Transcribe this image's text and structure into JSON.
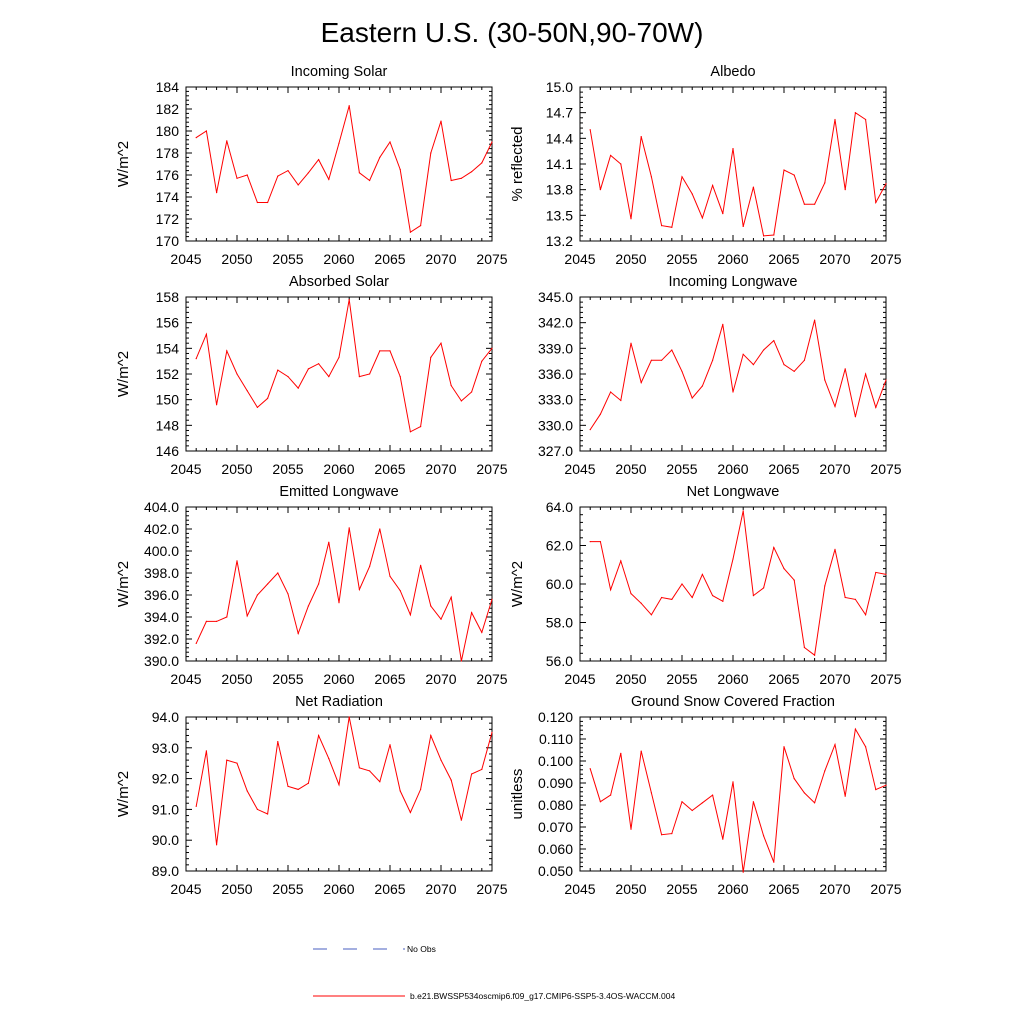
{
  "figure": {
    "title": "Eastern U.S. (30-50N,90-70W)",
    "line_color": "#ff0000",
    "obs_color": "#4a5fc1"
  },
  "legend": {
    "obs_label": "No Obs",
    "model_label": "b.e21.BWSSP534oscmip6.f09_g17.CMIP6-SSP5-3.4OS-WACCM.004"
  },
  "chart_data": [
    {
      "type": "line",
      "title": "Incoming Solar",
      "xlabel": "",
      "ylabel": "W/m^2",
      "xlim": [
        2045,
        2075
      ],
      "ylim": [
        170,
        184
      ],
      "xticks": [
        "2045",
        "2050",
        "2055",
        "2060",
        "2065",
        "2070",
        "2075"
      ],
      "yticks": [
        "170",
        "172",
        "174",
        "176",
        "178",
        "180",
        "182",
        "184"
      ],
      "x": [
        2046,
        2047,
        2048,
        2049,
        2050,
        2051,
        2052,
        2053,
        2054,
        2055,
        2056,
        2057,
        2058,
        2059,
        2060,
        2061,
        2062,
        2063,
        2064,
        2065,
        2066,
        2067,
        2068,
        2069,
        2070,
        2071,
        2072,
        2073,
        2074,
        2075
      ],
      "values": [
        179.4,
        180.0,
        174.4,
        179.1,
        175.7,
        176.0,
        173.5,
        173.5,
        175.9,
        176.4,
        175.1,
        176.2,
        177.4,
        175.6,
        178.9,
        182.3,
        176.2,
        175.5,
        177.6,
        179.0,
        176.5,
        170.8,
        171.4,
        178.0,
        180.9,
        175.5,
        175.7,
        176.3,
        177.1,
        179.0
      ]
    },
    {
      "type": "line",
      "title": "Albedo",
      "xlabel": "",
      "ylabel": "% reflected",
      "xlim": [
        2045,
        2075
      ],
      "ylim": [
        13.2,
        15.0
      ],
      "xticks": [
        "2045",
        "2050",
        "2055",
        "2060",
        "2065",
        "2070",
        "2075"
      ],
      "yticks": [
        "13.2",
        "13.5",
        "13.8",
        "14.1",
        "14.4",
        "14.7",
        "15.0"
      ],
      "x": [
        2046,
        2047,
        2048,
        2049,
        2050,
        2051,
        2052,
        2053,
        2054,
        2055,
        2056,
        2057,
        2058,
        2059,
        2060,
        2061,
        2062,
        2063,
        2064,
        2065,
        2066,
        2067,
        2068,
        2069,
        2070,
        2071,
        2072,
        2073,
        2074,
        2075
      ],
      "values": [
        14.5,
        13.8,
        14.2,
        14.1,
        13.46,
        14.42,
        13.95,
        13.38,
        13.36,
        13.95,
        13.75,
        13.47,
        13.85,
        13.52,
        14.28,
        13.37,
        13.83,
        13.26,
        13.27,
        14.03,
        13.97,
        13.63,
        13.63,
        13.88,
        14.62,
        13.8,
        14.7,
        14.62,
        13.65,
        13.87
      ]
    },
    {
      "type": "line",
      "title": "Absorbed Solar",
      "xlabel": "",
      "ylabel": "W/m^2",
      "xlim": [
        2045,
        2075
      ],
      "ylim": [
        146,
        158
      ],
      "xticks": [
        "2045",
        "2050",
        "2055",
        "2060",
        "2065",
        "2070",
        "2075"
      ],
      "yticks": [
        "146",
        "148",
        "150",
        "152",
        "154",
        "156",
        "158"
      ],
      "x": [
        2046,
        2047,
        2048,
        2049,
        2050,
        2051,
        2052,
        2053,
        2054,
        2055,
        2056,
        2057,
        2058,
        2059,
        2060,
        2061,
        2062,
        2063,
        2064,
        2065,
        2066,
        2067,
        2068,
        2069,
        2070,
        2071,
        2072,
        2073,
        2074,
        2075
      ],
      "values": [
        153.2,
        155.1,
        149.6,
        153.8,
        152.0,
        150.7,
        149.4,
        150.1,
        152.3,
        151.8,
        150.9,
        152.4,
        152.8,
        151.8,
        153.3,
        157.8,
        151.8,
        152.0,
        153.8,
        153.8,
        151.8,
        147.5,
        147.9,
        153.3,
        154.4,
        151.1,
        149.9,
        150.6,
        153.0,
        154.0
      ]
    },
    {
      "type": "line",
      "title": "Incoming Longwave",
      "xlabel": "",
      "ylabel": "",
      "xlim": [
        2045,
        2075
      ],
      "ylim": [
        327.0,
        345.0
      ],
      "xticks": [
        "2045",
        "2050",
        "2055",
        "2060",
        "2065",
        "2070",
        "2075"
      ],
      "yticks": [
        "327.0",
        "330.0",
        "333.0",
        "336.0",
        "339.0",
        "342.0",
        "345.0"
      ],
      "x": [
        2046,
        2047,
        2048,
        2049,
        2050,
        2051,
        2052,
        2053,
        2054,
        2055,
        2056,
        2057,
        2058,
        2059,
        2060,
        2061,
        2062,
        2063,
        2064,
        2065,
        2066,
        2067,
        2068,
        2069,
        2070,
        2071,
        2072,
        2073,
        2074,
        2075
      ],
      "values": [
        329.5,
        331.3,
        333.9,
        332.9,
        339.6,
        335.0,
        337.6,
        337.6,
        338.8,
        336.3,
        333.2,
        334.6,
        337.6,
        341.8,
        333.9,
        338.3,
        337.1,
        338.8,
        339.9,
        337.1,
        336.3,
        337.6,
        342.3,
        335.3,
        332.2,
        336.6,
        331.0,
        336.0,
        332.1,
        335.3
      ]
    },
    {
      "type": "line",
      "title": "Emitted Longwave",
      "xlabel": "",
      "ylabel": "W/m^2",
      "xlim": [
        2045,
        2075
      ],
      "ylim": [
        390.0,
        404.0
      ],
      "xticks": [
        "2045",
        "2050",
        "2055",
        "2060",
        "2065",
        "2070",
        "2075"
      ],
      "yticks": [
        "390.0",
        "392.0",
        "394.0",
        "396.0",
        "398.0",
        "400.0",
        "402.0",
        "404.0"
      ],
      "x": [
        2046,
        2047,
        2048,
        2049,
        2050,
        2051,
        2052,
        2053,
        2054,
        2055,
        2056,
        2057,
        2058,
        2059,
        2060,
        2061,
        2062,
        2063,
        2064,
        2065,
        2066,
        2067,
        2068,
        2069,
        2070,
        2071,
        2072,
        2073,
        2074,
        2075
      ],
      "values": [
        391.6,
        393.6,
        393.6,
        394.0,
        399.1,
        394.1,
        396.0,
        397.0,
        398.0,
        396.1,
        392.5,
        395.0,
        397.0,
        400.8,
        395.3,
        402.1,
        396.5,
        398.6,
        402.0,
        397.7,
        396.4,
        394.2,
        398.7,
        395.0,
        393.8,
        395.8,
        390.0,
        394.4,
        392.6,
        395.6
      ]
    },
    {
      "type": "line",
      "title": "Net Longwave",
      "xlabel": "",
      "ylabel": "W/m^2",
      "xlim": [
        2045,
        2075
      ],
      "ylim": [
        56.0,
        64.0
      ],
      "xticks": [
        "2045",
        "2050",
        "2055",
        "2060",
        "2065",
        "2070",
        "2075"
      ],
      "yticks": [
        "56.0",
        "58.0",
        "60.0",
        "62.0",
        "64.0"
      ],
      "x": [
        2046,
        2047,
        2048,
        2049,
        2050,
        2051,
        2052,
        2053,
        2054,
        2055,
        2056,
        2057,
        2058,
        2059,
        2060,
        2061,
        2062,
        2063,
        2064,
        2065,
        2066,
        2067,
        2068,
        2069,
        2070,
        2071,
        2072,
        2073,
        2074,
        2075
      ],
      "values": [
        62.2,
        62.2,
        59.7,
        61.2,
        59.5,
        59.0,
        58.4,
        59.3,
        59.2,
        60.0,
        59.3,
        60.5,
        59.4,
        59.1,
        61.3,
        63.8,
        59.4,
        59.8,
        61.9,
        60.8,
        60.2,
        56.7,
        56.3,
        59.9,
        61.8,
        59.3,
        59.2,
        58.4,
        60.6,
        60.5
      ]
    },
    {
      "type": "line",
      "title": "Net Radiation",
      "xlabel": "",
      "ylabel": "W/m^2",
      "xlim": [
        2045,
        2075
      ],
      "ylim": [
        89.0,
        94.0
      ],
      "xticks": [
        "2045",
        "2050",
        "2055",
        "2060",
        "2065",
        "2070",
        "2075"
      ],
      "yticks": [
        "89.0",
        "90.0",
        "91.0",
        "92.0",
        "93.0",
        "94.0"
      ],
      "x": [
        2046,
        2047,
        2048,
        2049,
        2050,
        2051,
        2052,
        2053,
        2054,
        2055,
        2056,
        2057,
        2058,
        2059,
        2060,
        2061,
        2062,
        2063,
        2064,
        2065,
        2066,
        2067,
        2068,
        2069,
        2070,
        2071,
        2072,
        2073,
        2074,
        2075
      ],
      "values": [
        91.1,
        92.9,
        89.85,
        92.6,
        92.5,
        91.6,
        91.0,
        90.85,
        93.2,
        91.75,
        91.65,
        91.85,
        93.4,
        92.65,
        91.8,
        94.0,
        92.35,
        92.25,
        91.9,
        93.1,
        91.6,
        90.9,
        91.65,
        93.4,
        92.6,
        91.95,
        90.65,
        92.15,
        92.3,
        93.5
      ]
    },
    {
      "type": "line",
      "title": "Ground Snow Covered Fraction",
      "xlabel": "",
      "ylabel": "unitless",
      "xlim": [
        2045,
        2075
      ],
      "ylim": [
        0.05,
        0.12
      ],
      "xticks": [
        "2045",
        "2050",
        "2055",
        "2060",
        "2065",
        "2070",
        "2075"
      ],
      "yticks": [
        "0.050",
        "0.060",
        "0.070",
        "0.080",
        "0.090",
        "0.100",
        "0.110",
        "0.120"
      ],
      "x": [
        2046,
        2047,
        2048,
        2049,
        2050,
        2051,
        2052,
        2053,
        2054,
        2055,
        2056,
        2057,
        2058,
        2059,
        2060,
        2061,
        2062,
        2063,
        2064,
        2065,
        2066,
        2067,
        2068,
        2069,
        2070,
        2071,
        2072,
        2073,
        2074,
        2075
      ],
      "values": [
        0.0965,
        0.0815,
        0.0845,
        0.1035,
        0.069,
        0.1045,
        0.0855,
        0.0665,
        0.067,
        0.0815,
        0.0775,
        0.081,
        0.0845,
        0.0645,
        0.0905,
        0.0495,
        0.0815,
        0.066,
        0.054,
        0.1065,
        0.092,
        0.0855,
        0.081,
        0.0955,
        0.1075,
        0.084,
        0.1145,
        0.1065,
        0.087,
        0.089
      ]
    }
  ]
}
